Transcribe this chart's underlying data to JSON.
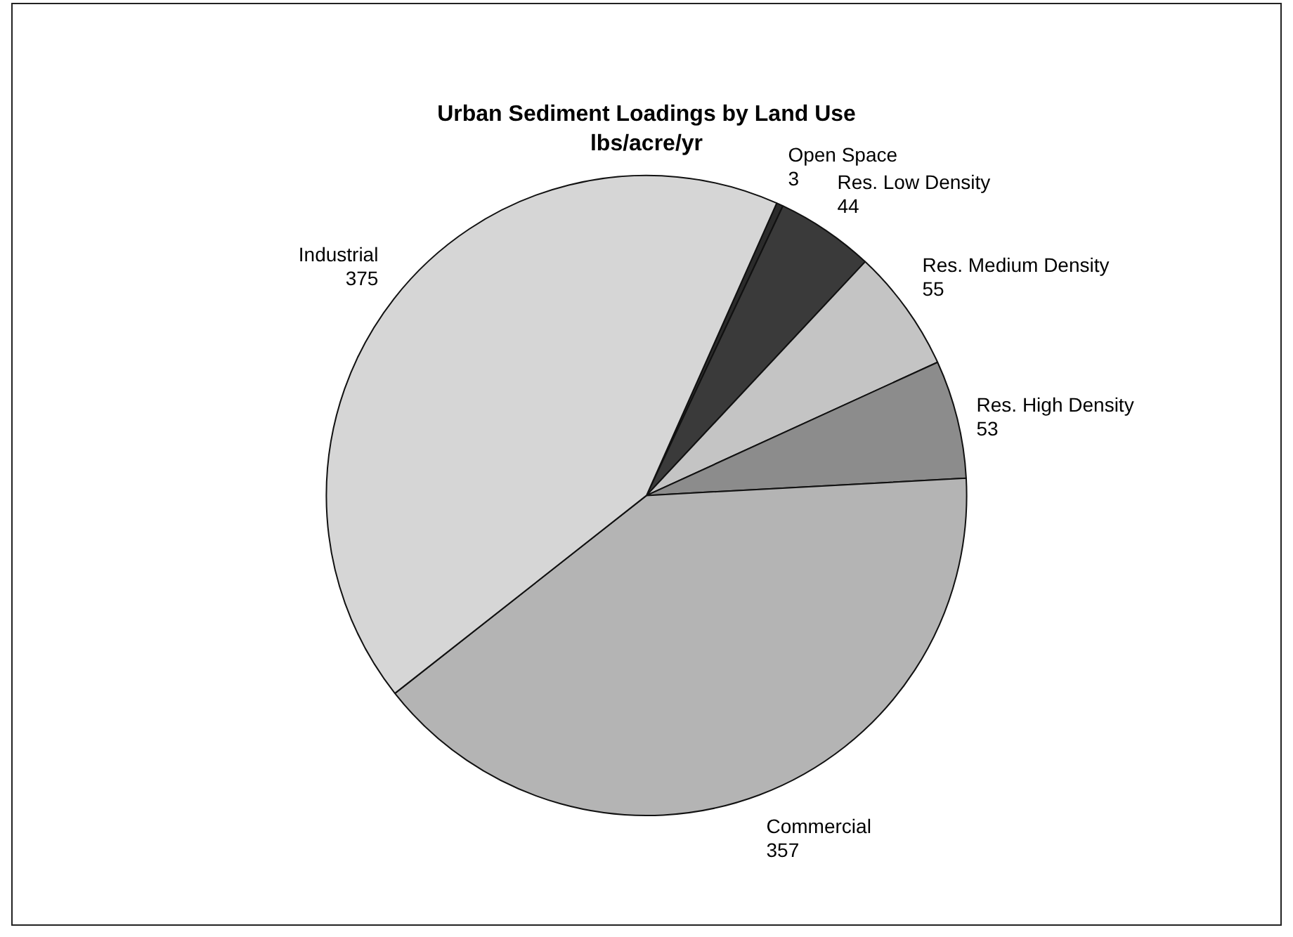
{
  "chart_data": {
    "type": "pie",
    "title": "Urban Sediment Loadings by Land Use",
    "subtitle": "lbs/acre/yr",
    "categories": [
      "Open Space",
      "Res. Low Density",
      "Res. Medium Density",
      "Res. High Density",
      "Commercial",
      "Industrial"
    ],
    "values": [
      3,
      44,
      55,
      53,
      357,
      375
    ],
    "colors": [
      "#2b2b2b",
      "#3a3a3a",
      "#c4c4c4",
      "#8c8c8c",
      "#b4b4b4",
      "#d6d6d6"
    ],
    "data_labels": true,
    "legend": false
  }
}
